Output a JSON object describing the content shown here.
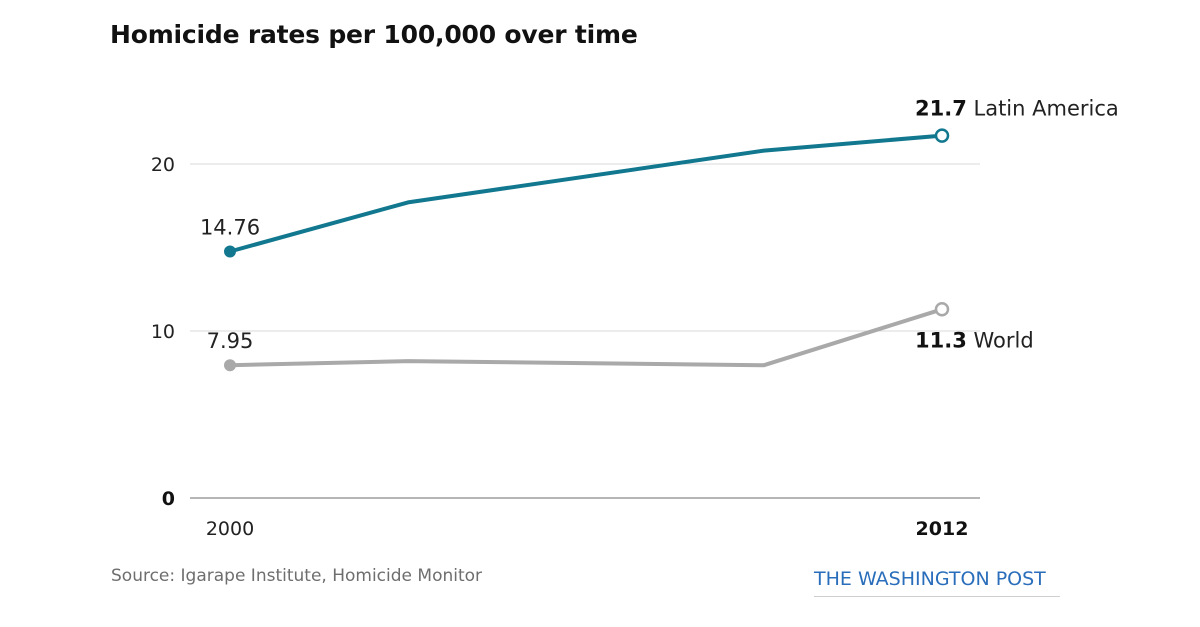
{
  "title": "Homicide rates per 100,000 over time",
  "source": "Source: Igarape Institute, Homicide Monitor",
  "credit": "THE WASHINGTON POST",
  "colors": {
    "latin_america": "#12788f",
    "world": "#a9a9a9",
    "grid": "#d9d9d9",
    "axis": "#9e9e9e",
    "credit": "#2a6ebb"
  },
  "chart_data": {
    "type": "line",
    "title": "Homicide rates per 100,000 over time",
    "xlabel": "",
    "ylabel": "",
    "xlim": [
      2000,
      2012
    ],
    "ylim": [
      0,
      22
    ],
    "yticks": [
      0,
      10,
      20
    ],
    "ytick_labels": [
      "0",
      "10",
      "20"
    ],
    "xtick_labels": [
      "2000",
      "2012"
    ],
    "grid": true,
    "series": [
      {
        "name": "Latin America",
        "color": "#12788f",
        "x": [
          2000,
          2003,
          2009,
          2012
        ],
        "y": [
          14.76,
          17.7,
          20.8,
          21.7
        ],
        "start_label": "14.76",
        "end_value_label": "21.7",
        "end_name_label": "Latin America"
      },
      {
        "name": "World",
        "color": "#a9a9a9",
        "x": [
          2000,
          2003,
          2009,
          2012
        ],
        "y": [
          7.95,
          8.2,
          7.95,
          11.3
        ],
        "start_label": "7.95",
        "end_value_label": "11.3",
        "end_name_label": "World"
      }
    ]
  }
}
